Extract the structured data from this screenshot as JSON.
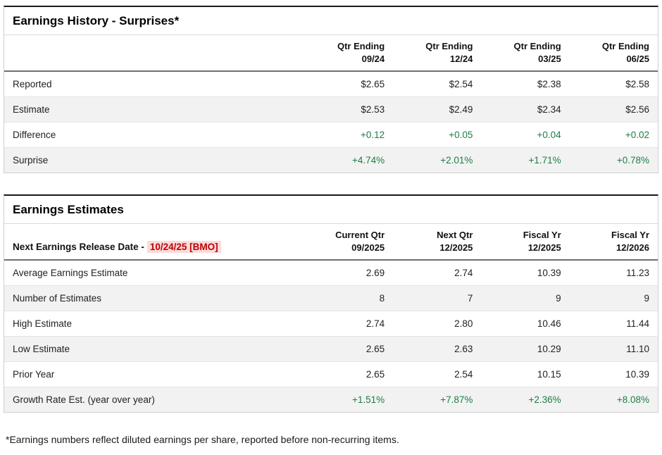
{
  "colors": {
    "positive_green": "#1e7d45",
    "alert_red": "#c00000",
    "alert_red_bg": "#fbdada"
  },
  "earnings_history": {
    "title": "Earnings History - Surprises*",
    "columns": [
      {
        "line1": "Qtr Ending",
        "line2": "09/24"
      },
      {
        "line1": "Qtr Ending",
        "line2": "12/24"
      },
      {
        "line1": "Qtr Ending",
        "line2": "03/25"
      },
      {
        "line1": "Qtr Ending",
        "line2": "06/25"
      }
    ],
    "rows": [
      {
        "label": "Reported",
        "values": [
          "$2.65",
          "$2.54",
          "$2.38",
          "$2.58"
        ]
      },
      {
        "label": "Estimate",
        "values": [
          "$2.53",
          "$2.49",
          "$2.34",
          "$2.56"
        ]
      },
      {
        "label": "Difference",
        "values": [
          "+0.12",
          "+0.05",
          "+0.04",
          "+0.02"
        ]
      },
      {
        "label": "Surprise",
        "values": [
          "+4.74%",
          "+2.01%",
          "+1.71%",
          "+0.78%"
        ]
      }
    ]
  },
  "earnings_estimates": {
    "title": "Earnings Estimates",
    "release_label": "Next Earnings Release Date -",
    "release_date": "10/24/25 [BMO]",
    "columns": [
      {
        "line1": "Current Qtr",
        "line2": "09/2025"
      },
      {
        "line1": "Next Qtr",
        "line2": "12/2025"
      },
      {
        "line1": "Fiscal Yr",
        "line2": "12/2025"
      },
      {
        "line1": "Fiscal Yr",
        "line2": "12/2026"
      }
    ],
    "rows": [
      {
        "label": "Average Earnings Estimate",
        "values": [
          "2.69",
          "2.74",
          "10.39",
          "11.23"
        ]
      },
      {
        "label": "Number of Estimates",
        "values": [
          "8",
          "7",
          "9",
          "9"
        ]
      },
      {
        "label": "High Estimate",
        "values": [
          "2.74",
          "2.80",
          "10.46",
          "11.44"
        ]
      },
      {
        "label": "Low Estimate",
        "values": [
          "2.65",
          "2.63",
          "10.29",
          "11.10"
        ]
      },
      {
        "label": "Prior Year",
        "values": [
          "2.65",
          "2.54",
          "10.15",
          "10.39"
        ]
      },
      {
        "label": "Growth Rate Est. (year over year)",
        "values": [
          "+1.51%",
          "+7.87%",
          "+2.36%",
          "+8.08%"
        ]
      }
    ]
  },
  "footnote": "*Earnings numbers reflect diluted earnings per share, reported before non-recurring items."
}
